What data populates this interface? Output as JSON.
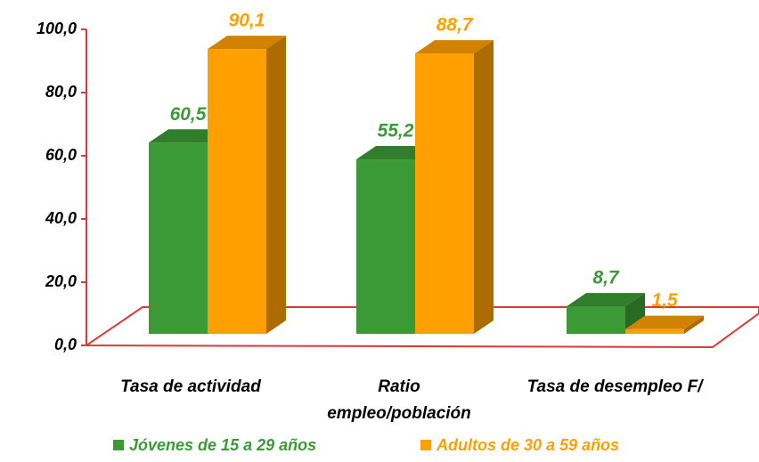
{
  "chart_data": {
    "type": "bar3d",
    "categories": [
      "Tasa de actividad",
      "Ratio empleo/población",
      "Tasa de desempleo F/"
    ],
    "series": [
      {
        "name": "Jóvenes de 15 a 29 años",
        "color": "#3b9a35",
        "values": [
          60.5,
          55.2,
          8.7
        ],
        "value_labels": [
          "60,5",
          "55,2",
          "8,7"
        ]
      },
      {
        "name": "Adultos de 30 a 59 años",
        "color": "#ff9f00",
        "values": [
          90.1,
          88.7,
          1.5
        ],
        "value_labels": [
          "90,1",
          "88,7",
          "1,5"
        ]
      }
    ],
    "ylim": [
      0,
      100
    ],
    "yticks": [
      {
        "value": 0,
        "label": "0,0"
      },
      {
        "value": 20,
        "label": "20,0"
      },
      {
        "value": 40,
        "label": "40,0"
      },
      {
        "value": 60,
        "label": "60,0"
      },
      {
        "value": 80,
        "label": "80,0"
      },
      {
        "value": 100,
        "label": "100,0"
      }
    ],
    "legend": "bottom"
  }
}
